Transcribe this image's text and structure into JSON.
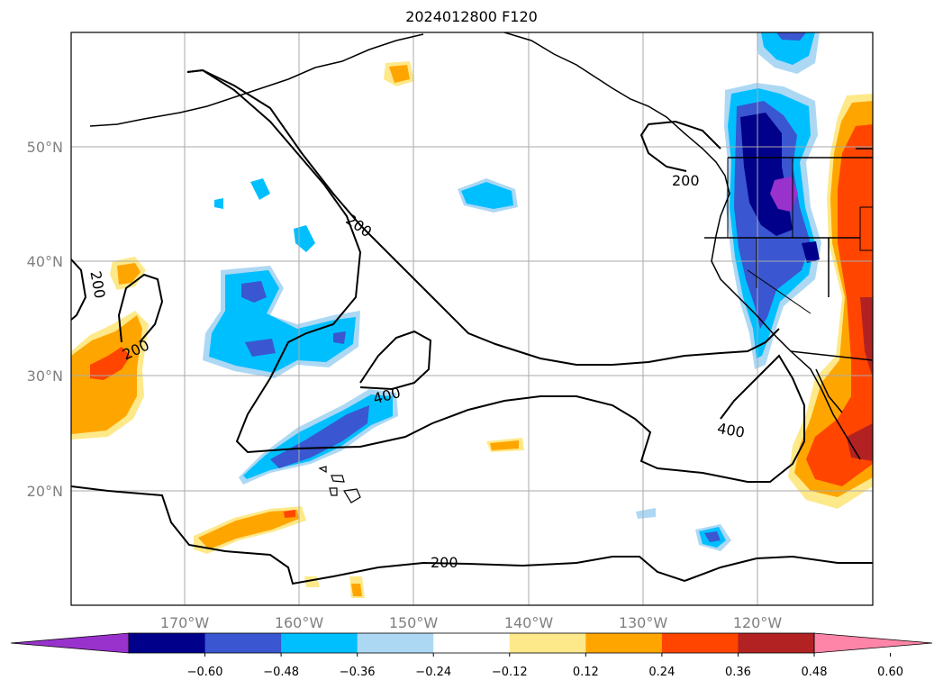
{
  "title": "2024012800 F120",
  "map": {
    "lat_labels": [
      "50°N",
      "40°N",
      "30°N",
      "20°N"
    ],
    "lon_labels": [
      "170°W",
      "160°W",
      "150°W",
      "140°W",
      "130°W",
      "120°W"
    ],
    "contour_labels": [
      "200",
      "200",
      "200",
      "400",
      "400",
      "200"
    ]
  },
  "colorbar": {
    "ticks": [
      "−0.60",
      "−0.48",
      "−0.36",
      "−0.24",
      "−0.12",
      "0.12",
      "0.24",
      "0.36",
      "0.48",
      "0.60"
    ],
    "colors": [
      "#9932cc",
      "#00008b",
      "#3a56d0",
      "#00bfff",
      "#add8f4",
      "#ffffff",
      "#fde98a",
      "#ffa500",
      "#ff4500",
      "#b22222",
      "#ff85a8"
    ]
  }
}
